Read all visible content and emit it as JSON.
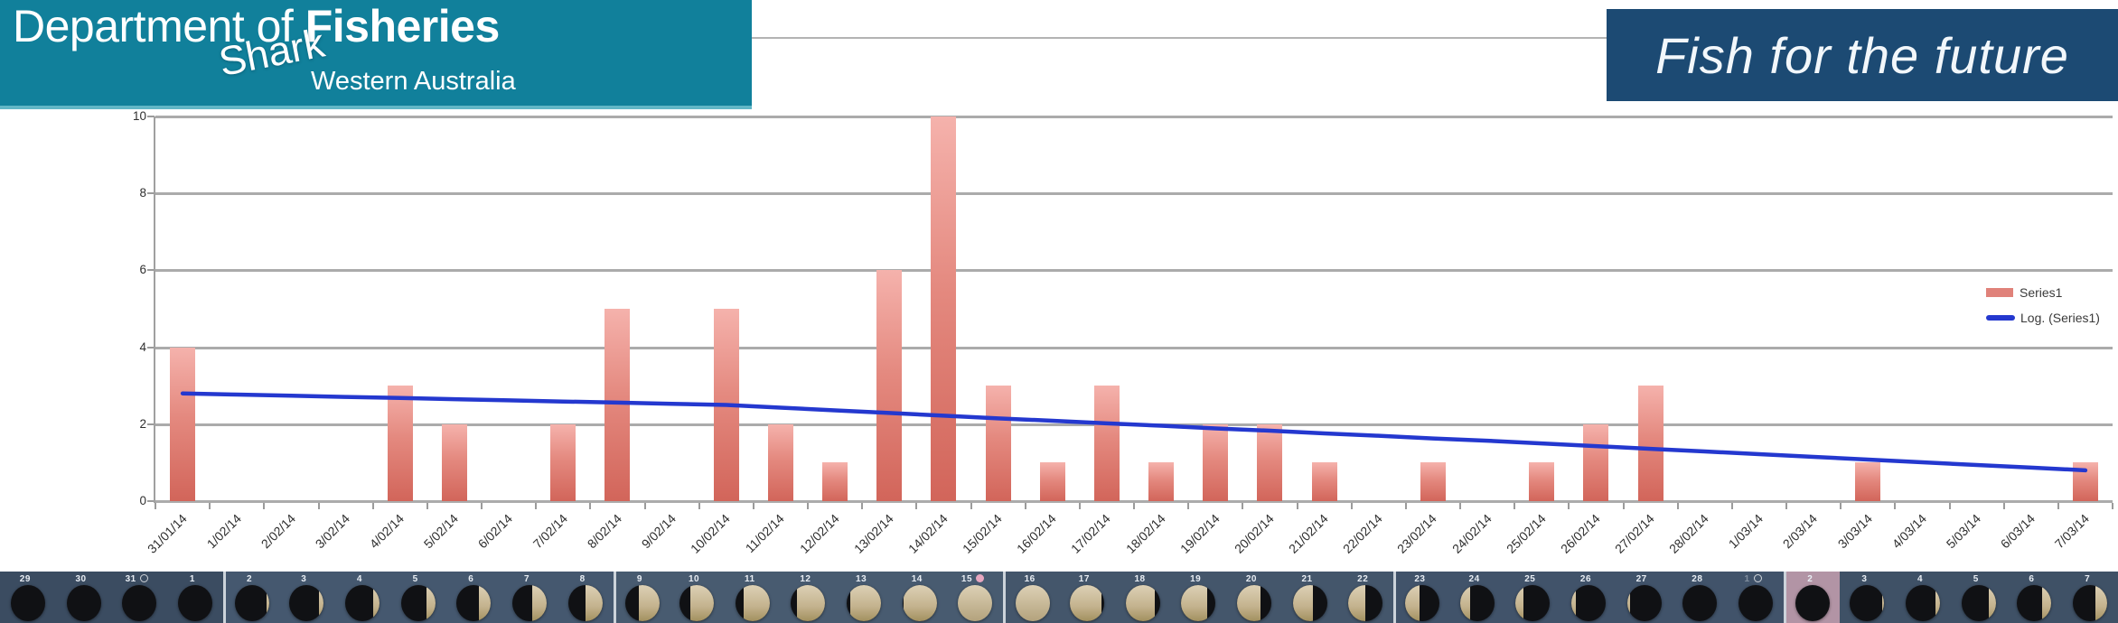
{
  "header": {
    "left_banner": {
      "title_regular": "Department of ",
      "title_bold": "Fisheries",
      "subtitle": "Western Australia",
      "overlay": "Shark",
      "bg_color": "#11809b"
    },
    "right_banner": {
      "slogan": "Fish for the future",
      "bg_color": "#1c4a73"
    }
  },
  "chart_data": {
    "type": "bar",
    "title": "",
    "xlabel": "",
    "ylabel": "",
    "ylim": [
      0,
      10
    ],
    "yticks": [
      0,
      2,
      4,
      6,
      8,
      10
    ],
    "grid": true,
    "legend_position": "right",
    "categories": [
      "31/01/14",
      "1/02/14",
      "2/02/14",
      "3/02/14",
      "4/02/14",
      "5/02/14",
      "6/02/14",
      "7/02/14",
      "8/02/14",
      "9/02/14",
      "10/02/14",
      "11/02/14",
      "12/02/14",
      "13/02/14",
      "14/02/14",
      "15/02/14",
      "16/02/14",
      "17/02/14",
      "18/02/14",
      "19/02/14",
      "20/02/14",
      "21/02/14",
      "22/02/14",
      "23/02/14",
      "24/02/14",
      "25/02/14",
      "26/02/14",
      "27/02/14",
      "28/02/14",
      "1/03/14",
      "2/03/14",
      "3/03/14",
      "4/03/14",
      "5/03/14",
      "6/03/14",
      "7/03/14"
    ],
    "series": [
      {
        "name": "Series1",
        "type": "bar",
        "color": "#e0827a",
        "values": [
          4,
          0,
          0,
          0,
          3,
          2,
          0,
          2,
          5,
          0,
          5,
          2,
          1,
          6,
          10,
          3,
          1,
          3,
          1,
          2,
          2,
          1,
          0,
          1,
          0,
          1,
          2,
          3,
          0,
          0,
          0,
          1,
          0,
          0,
          0,
          1
        ]
      },
      {
        "name": "Log. (Series1)",
        "type": "line",
        "color": "#2438cf",
        "values": [
          2.8,
          2.77,
          2.74,
          2.71,
          2.68,
          2.65,
          2.62,
          2.59,
          2.56,
          2.53,
          2.5,
          2.43,
          2.36,
          2.29,
          2.22,
          2.15,
          2.09,
          2.02,
          1.96,
          1.89,
          1.83,
          1.76,
          1.7,
          1.63,
          1.57,
          1.5,
          1.43,
          1.36,
          1.29,
          1.22,
          1.15,
          1.08,
          1.01,
          0.94,
          0.87,
          0.8
        ]
      }
    ]
  },
  "moon_strip": {
    "group_colors": [
      "#3b4c61",
      "#45586f",
      "#485b70",
      "#44566b",
      "#41536a",
      "#3f5166"
    ],
    "highlight_color": "#b294a5",
    "panels": [
      {
        "day": "29",
        "lit": 0,
        "side": "none",
        "g": 0
      },
      {
        "day": "30",
        "lit": 0,
        "side": "none",
        "g": 0
      },
      {
        "day": "31",
        "lit": 0,
        "side": "none",
        "g": 0,
        "marker": "new"
      },
      {
        "day": "1",
        "lit": 0.03,
        "side": "right",
        "g": 0
      },
      {
        "day": "2",
        "lit": 0.07,
        "side": "right",
        "g": 1,
        "sep": true
      },
      {
        "day": "3",
        "lit": 0.13,
        "side": "right",
        "g": 1
      },
      {
        "day": "4",
        "lit": 0.19,
        "side": "right",
        "g": 1
      },
      {
        "day": "5",
        "lit": 0.26,
        "side": "right",
        "g": 1
      },
      {
        "day": "6",
        "lit": 0.34,
        "side": "right",
        "g": 1
      },
      {
        "day": "7",
        "lit": 0.42,
        "side": "right",
        "g": 1
      },
      {
        "day": "8",
        "lit": 0.5,
        "side": "right",
        "g": 1
      },
      {
        "day": "9",
        "lit": 0.6,
        "side": "right",
        "g": 2,
        "sep": true
      },
      {
        "day": "10",
        "lit": 0.68,
        "side": "right",
        "g": 2
      },
      {
        "day": "11",
        "lit": 0.76,
        "side": "right",
        "g": 2
      },
      {
        "day": "12",
        "lit": 0.84,
        "side": "right",
        "g": 2
      },
      {
        "day": "13",
        "lit": 0.9,
        "side": "right",
        "g": 2
      },
      {
        "day": "14",
        "lit": 0.96,
        "side": "right",
        "g": 2
      },
      {
        "day": "15",
        "lit": 1,
        "side": "full",
        "g": 2,
        "marker": "full"
      },
      {
        "day": "16",
        "lit": 0.97,
        "side": "left",
        "g": 3,
        "sep": true
      },
      {
        "day": "17",
        "lit": 0.92,
        "side": "left",
        "g": 3
      },
      {
        "day": "18",
        "lit": 0.85,
        "side": "left",
        "g": 3
      },
      {
        "day": "19",
        "lit": 0.77,
        "side": "left",
        "g": 3
      },
      {
        "day": "20",
        "lit": 0.68,
        "side": "left",
        "g": 3
      },
      {
        "day": "21",
        "lit": 0.58,
        "side": "left",
        "g": 3
      },
      {
        "day": "22",
        "lit": 0.5,
        "side": "left",
        "g": 3
      },
      {
        "day": "23",
        "lit": 0.4,
        "side": "left",
        "g": 4,
        "sep": true
      },
      {
        "day": "24",
        "lit": 0.31,
        "side": "left",
        "g": 4
      },
      {
        "day": "25",
        "lit": 0.22,
        "side": "left",
        "g": 4
      },
      {
        "day": "26",
        "lit": 0.14,
        "side": "left",
        "g": 4
      },
      {
        "day": "27",
        "lit": 0.08,
        "side": "left",
        "g": 4
      },
      {
        "day": "28",
        "lit": 0.03,
        "side": "left",
        "g": 4
      },
      {
        "day": "1",
        "lit": 0,
        "side": "none",
        "g": 4,
        "marker": "new",
        "dim": true
      },
      {
        "day": "2",
        "lit": 0.02,
        "side": "right",
        "g": 5,
        "sep": true,
        "highlight": true
      },
      {
        "day": "3",
        "lit": 0.07,
        "side": "right",
        "g": 5
      },
      {
        "day": "4",
        "lit": 0.13,
        "side": "right",
        "g": 5
      },
      {
        "day": "5",
        "lit": 0.2,
        "side": "right",
        "g": 5
      },
      {
        "day": "6",
        "lit": 0.27,
        "side": "right",
        "g": 5
      },
      {
        "day": "7",
        "lit": 0.35,
        "side": "right",
        "g": 5
      }
    ]
  }
}
